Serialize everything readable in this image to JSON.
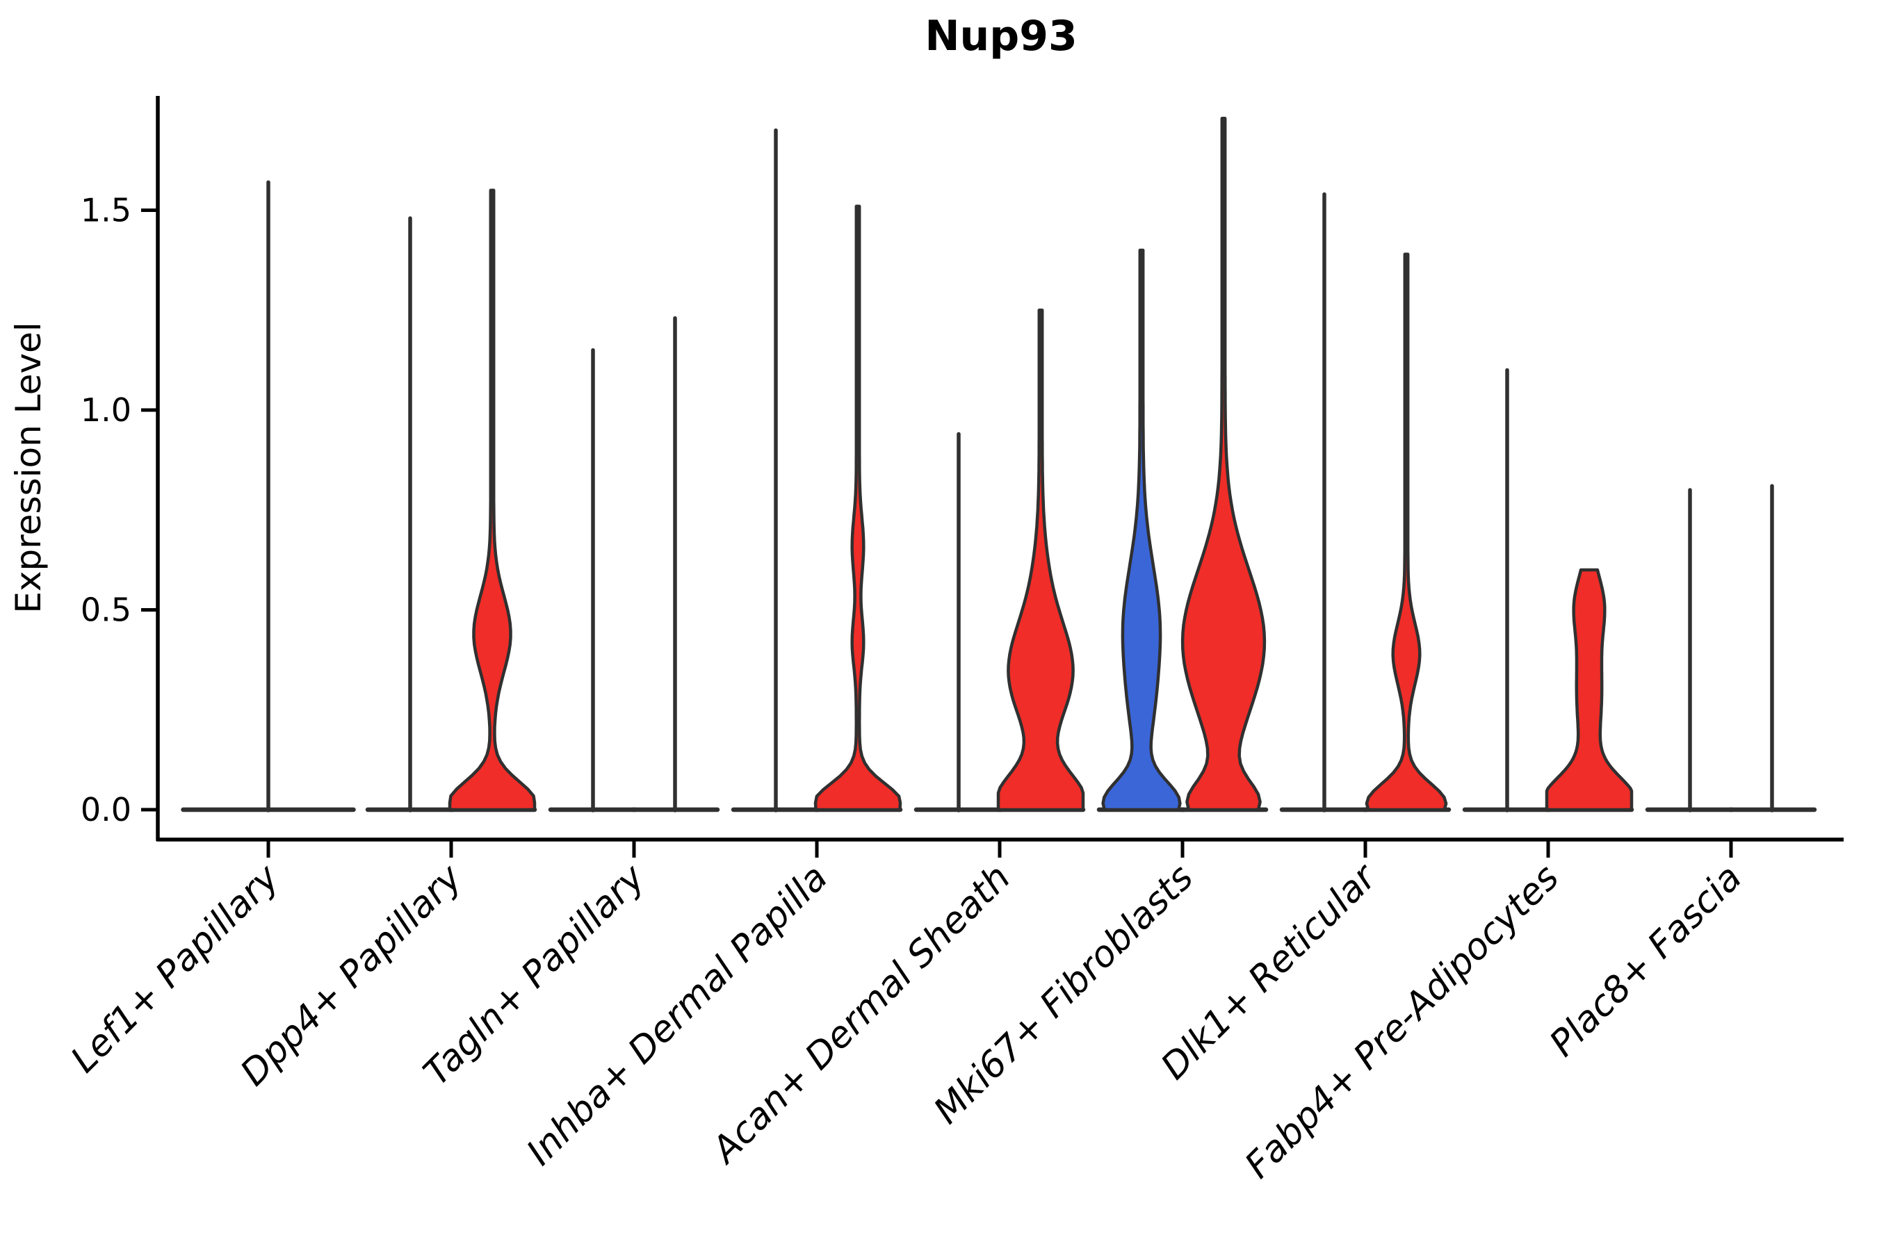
{
  "chart_data": {
    "type": "violin",
    "title": "Nup93",
    "xlabel": "",
    "ylabel": "Expression Level",
    "ylim": [
      0,
      1.78
    ],
    "ytick_labels": [
      "0.0",
      "0.5",
      "1.0",
      "1.5"
    ],
    "ytick_values": [
      0,
      0.5,
      1.0,
      1.5
    ],
    "grid": false,
    "legend": false,
    "categories": [
      "Lef1+ Papillary",
      "Dpp4+ Papillary",
      "Tagln+ Papillary",
      "Inhba+ Dermal Papilla",
      "Acan+ Dermal Sheath",
      "Mki67+ Fibroblasts",
      "Dlk1+ Reticular",
      "Fabp4+ Pre-Adipocytes",
      "Plac8+ Fascia"
    ],
    "colors": {
      "red": "#F02D28",
      "blue": "#3B66D8",
      "outline": "#303030",
      "axis": "#000000"
    },
    "violins": [
      {
        "category": 0,
        "position": "center",
        "color": null,
        "max_expression": 1.57,
        "blunt_top": false,
        "density_bumps": []
      },
      {
        "category": 1,
        "position": "left",
        "color": null,
        "max_expression": 1.48,
        "blunt_top": false,
        "density_bumps": []
      },
      {
        "category": 1,
        "position": "right",
        "color": "red",
        "max_expression": 1.55,
        "blunt_top": false,
        "density_bumps": [
          [
            0.015,
            0.055,
            1.0
          ],
          [
            0.44,
            0.095,
            0.4
          ]
        ]
      },
      {
        "category": 2,
        "position": "left",
        "color": null,
        "max_expression": 1.15,
        "blunt_top": false,
        "density_bumps": []
      },
      {
        "category": 2,
        "position": "right",
        "color": null,
        "max_expression": 1.23,
        "blunt_top": false,
        "density_bumps": []
      },
      {
        "category": 3,
        "position": "left",
        "color": null,
        "max_expression": 1.7,
        "blunt_top": false,
        "density_bumps": []
      },
      {
        "category": 3,
        "position": "right",
        "color": "red",
        "max_expression": 1.51,
        "blunt_top": false,
        "density_bumps": [
          [
            0.015,
            0.05,
            1.0
          ],
          [
            0.42,
            0.06,
            0.1
          ],
          [
            0.66,
            0.07,
            0.1
          ]
        ]
      },
      {
        "category": 4,
        "position": "left",
        "color": null,
        "max_expression": 0.94,
        "blunt_top": false,
        "density_bumps": []
      },
      {
        "category": 4,
        "position": "right",
        "color": "red",
        "max_expression": 1.25,
        "blunt_top": false,
        "density_bumps": [
          [
            0.02,
            0.07,
            1.0
          ],
          [
            0.34,
            0.12,
            0.7
          ],
          [
            0.55,
            0.12,
            0.12
          ]
        ]
      },
      {
        "category": 5,
        "position": "left",
        "color": "blue",
        "max_expression": 1.4,
        "blunt_top": false,
        "density_bumps": [
          [
            0.015,
            0.055,
            0.85
          ],
          [
            0.45,
            0.16,
            0.4
          ],
          [
            0.22,
            0.1,
            0.1
          ]
        ]
      },
      {
        "category": 5,
        "position": "right",
        "color": "red",
        "max_expression": 1.73,
        "blunt_top": false,
        "density_bumps": [
          [
            0.015,
            0.055,
            0.75
          ],
          [
            0.42,
            0.18,
            0.93
          ]
        ]
      },
      {
        "category": 6,
        "position": "left",
        "color": null,
        "max_expression": 1.54,
        "blunt_top": false,
        "density_bumps": []
      },
      {
        "category": 6,
        "position": "right",
        "color": "red",
        "max_expression": 1.39,
        "blunt_top": false,
        "density_bumps": [
          [
            0.015,
            0.05,
            0.9
          ],
          [
            0.39,
            0.075,
            0.28
          ]
        ]
      },
      {
        "category": 7,
        "position": "left",
        "color": null,
        "max_expression": 1.1,
        "blunt_top": false,
        "density_bumps": []
      },
      {
        "category": 7,
        "position": "right",
        "color": "red",
        "max_expression": 0.6,
        "blunt_top": true,
        "density_bumps": [
          [
            0.02,
            0.06,
            1.0
          ],
          [
            0.3,
            0.16,
            0.26
          ],
          [
            0.52,
            0.07,
            0.22
          ]
        ]
      },
      {
        "category": 8,
        "position": "left",
        "color": null,
        "max_expression": 0.8,
        "blunt_top": false,
        "density_bumps": []
      },
      {
        "category": 8,
        "position": "right",
        "color": null,
        "max_expression": 0.81,
        "blunt_top": false,
        "density_bumps": []
      }
    ]
  }
}
